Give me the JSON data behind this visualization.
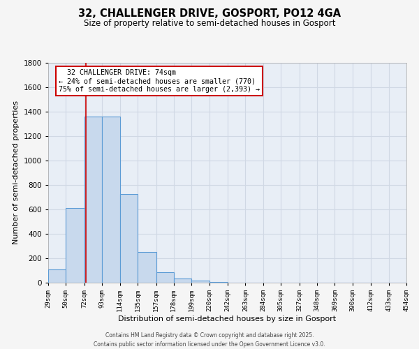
{
  "title": "32, CHALLENGER DRIVE, GOSPORT, PO12 4GA",
  "subtitle": "Size of property relative to semi-detached houses in Gosport",
  "xlabel": "Distribution of semi-detached houses by size in Gosport",
  "ylabel": "Number of semi-detached properties",
  "bin_edges": [
    29,
    50,
    72,
    93,
    114,
    135,
    157,
    178,
    199,
    220,
    242,
    263,
    284,
    305,
    327,
    348,
    369,
    390,
    412,
    433,
    454
  ],
  "bar_heights": [
    110,
    610,
    1360,
    1360,
    725,
    250,
    85,
    35,
    15,
    5,
    2,
    1,
    0,
    0,
    0,
    0,
    0,
    0,
    0,
    0
  ],
  "bar_color": "#c8d9ed",
  "bar_edge_color": "#5b9bd5",
  "bg_color": "#e8eef6",
  "grid_color": "#d0d8e4",
  "red_line_x": 74,
  "annotation_title": "32 CHALLENGER DRIVE: 74sqm",
  "annotation_line1": "← 24% of semi-detached houses are smaller (770)",
  "annotation_line2": "75% of semi-detached houses are larger (2,393) →",
  "annotation_box_color": "#ffffff",
  "annotation_box_edge": "#cc0000",
  "red_line_color": "#cc0000",
  "ylim": [
    0,
    1800
  ],
  "yticks": [
    0,
    200,
    400,
    600,
    800,
    1000,
    1200,
    1400,
    1600,
    1800
  ],
  "footer1": "Contains HM Land Registry data © Crown copyright and database right 2025.",
  "footer2": "Contains public sector information licensed under the Open Government Licence v3.0."
}
